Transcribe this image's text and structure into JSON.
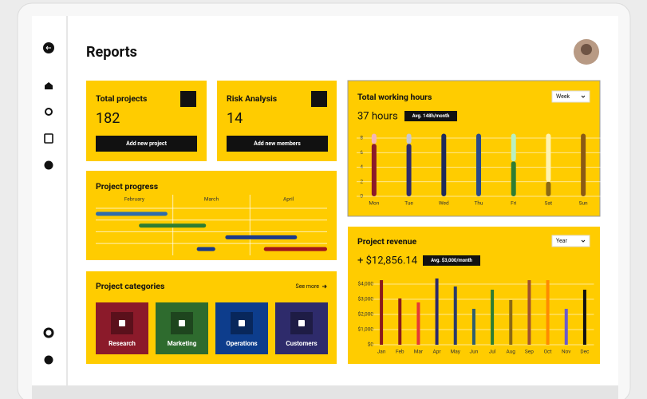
{
  "header": {
    "title": "Reports"
  },
  "cards": [
    {
      "title": "Total projects",
      "value": "182",
      "button": "Add new project"
    },
    {
      "title": "Risk Analysis",
      "value": "14",
      "button": "Add new members"
    }
  ],
  "categories_panel": {
    "title": "Project categories",
    "link": "See more",
    "items": [
      {
        "label": "Research",
        "color": "#8b1a2a"
      },
      {
        "label": "Marketing",
        "color": "#2e6b2e"
      },
      {
        "label": "Operations",
        "color": "#0d3d8c"
      },
      {
        "label": "Customers",
        "color": "#2e2b6b"
      }
    ]
  },
  "chart_data": [
    {
      "type": "gantt",
      "title": "Project progress",
      "categories": [
        "February",
        "March",
        "April"
      ],
      "rows": [
        [
          {
            "start": 0,
            "end": 0.93,
            "color": "#2f6da8"
          }
        ],
        [
          {
            "start": 0.56,
            "end": 1.43,
            "color": "#2e7d32"
          }
        ],
        [
          {
            "start": 1.68,
            "end": 2.61,
            "color": "#1a3a8a"
          }
        ],
        [
          {
            "start": 1.31,
            "end": 1.55,
            "color": "#1a3a8a"
          },
          {
            "start": 2.18,
            "end": 3.0,
            "color": "#a0171b"
          }
        ]
      ]
    },
    {
      "type": "bar",
      "stacked": true,
      "title": "Total working hours",
      "subtitle": "37 hours",
      "annotation": "Avg. 148h/month",
      "dropdown": "Week",
      "categories": [
        "Mon",
        "Tue",
        "Wed",
        "Thu",
        "Fri",
        "Sat",
        "Sun"
      ],
      "series": [
        {
          "values": [
            7.2,
            7.2,
            8.6,
            8.6,
            4.8,
            2.0,
            8.6
          ],
          "colors": [
            "#8b1a2a",
            "#2e2b6b",
            "#1e2a5a",
            "#2a4a8a",
            "#2e7d32",
            "#8b6914",
            "#8b5a14"
          ]
        },
        {
          "values": [
            1.4,
            1.4,
            0,
            0,
            3.8,
            6.6,
            0
          ],
          "colors": [
            "#f4b6b6",
            "#c8c8d0",
            "#1e2a5a",
            "#2a4a8a",
            "#b9f0c0",
            "#fff3b0",
            "#8b5a14"
          ]
        }
      ],
      "ylim": [
        0,
        9
      ],
      "yticks": [
        0,
        2,
        4,
        6,
        8
      ],
      "grid": true
    },
    {
      "type": "bar",
      "title": "Project revenue",
      "subtitle": "+ $12,856.14",
      "annotation": "Avg. $3,000/month",
      "dropdown": "Year",
      "categories": [
        "Jan",
        "Feb",
        "Mar",
        "Apr",
        "May",
        "Jun",
        "Jul",
        "Aug",
        "Sep",
        "Oct",
        "Nov",
        "Dec"
      ],
      "values": [
        4260,
        3050,
        2790,
        4370,
        3840,
        2370,
        3630,
        2950,
        4260,
        4260,
        2370,
        3630
      ],
      "colors": [
        "#8b1a1a",
        "#8b1a1a",
        "#e53935",
        "#2a2a6a",
        "#2a3a6a",
        "#2e5e6e",
        "#2e7d32",
        "#8b6914",
        "#a0522d",
        "#ff8c00",
        "#6a5acd",
        "#111111"
      ],
      "ylim": [
        0,
        4500
      ],
      "yticks": [
        {
          "value": 0,
          "label": "$0"
        },
        {
          "value": 1000,
          "label": "$1,000"
        },
        {
          "value": 2000,
          "label": "$2,000"
        },
        {
          "value": 3000,
          "label": "$3,000"
        },
        {
          "value": 4000,
          "label": "$4,000"
        }
      ],
      "grid": true
    }
  ]
}
